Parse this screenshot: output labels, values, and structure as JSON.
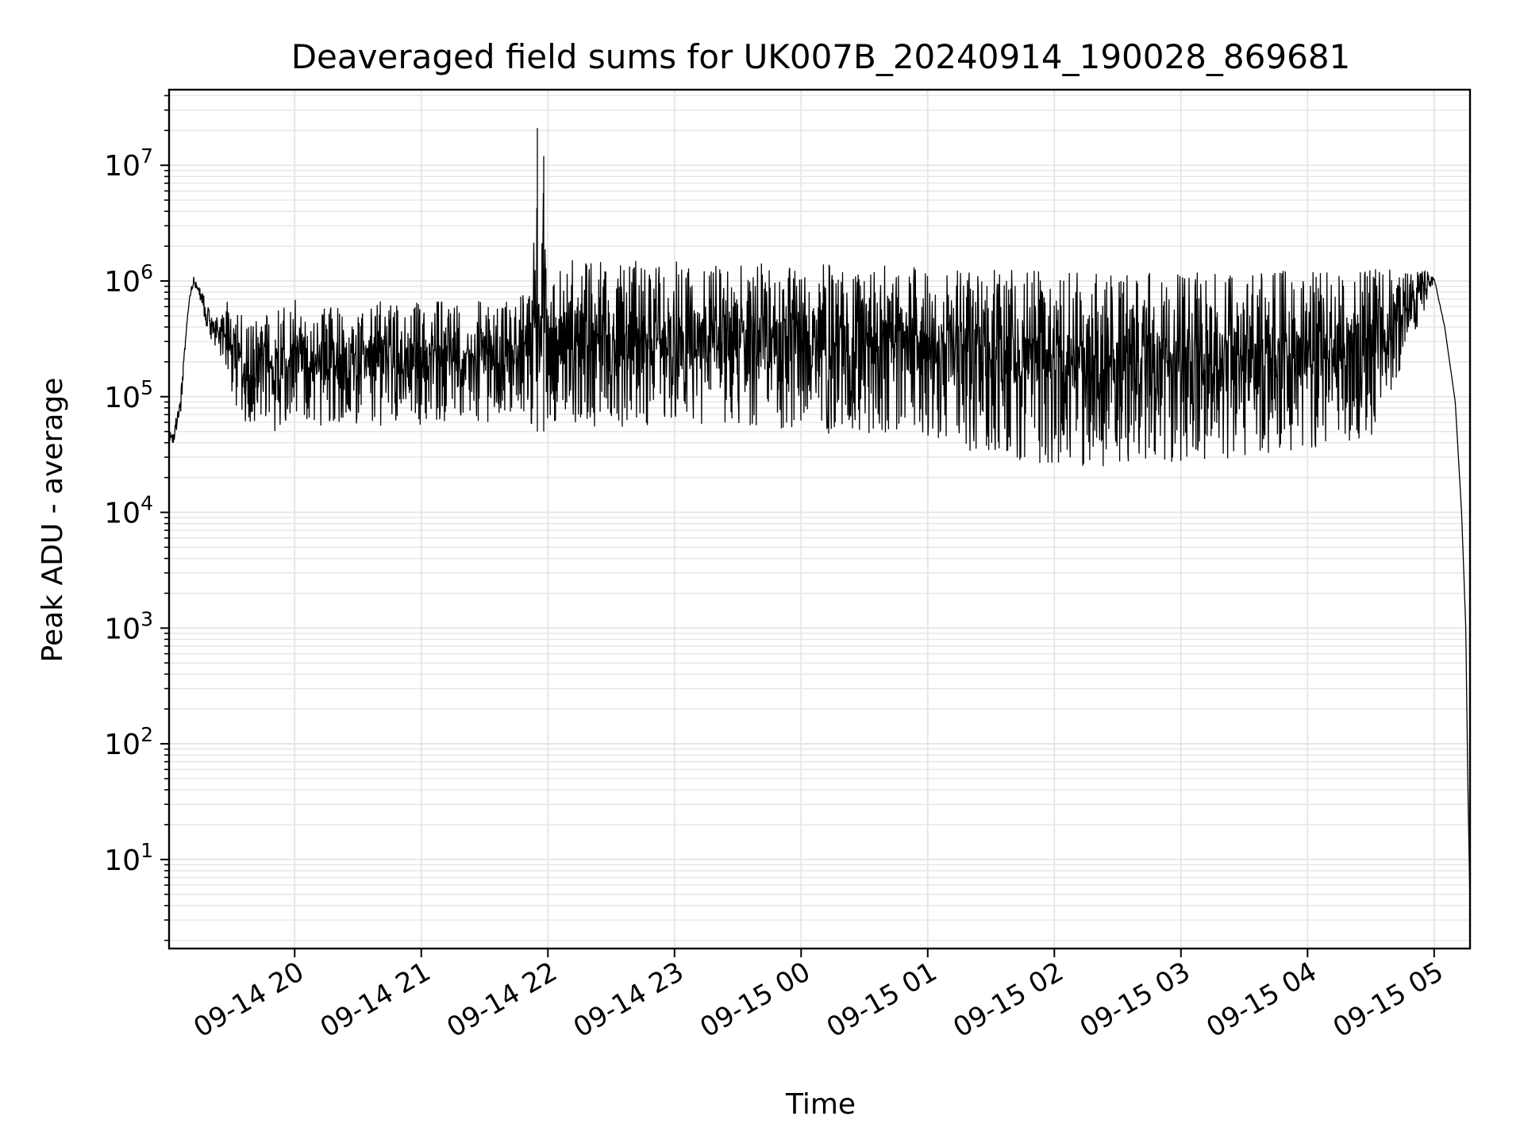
{
  "chart_data": {
    "type": "line",
    "title": "Deaveraged field sums for UK007B_20240914_190028_869681",
    "xlabel": "Time",
    "ylabel": "Peak ADU - average",
    "y_scale": "log",
    "grid": true,
    "legend": "none",
    "line_color": "#000000",
    "grid_color": "#e5e5e5",
    "xlim": [
      "2024-09-14 19:00:28",
      "2024-09-15 05:17"
    ],
    "ylim": [
      1.7,
      45000000
    ],
    "x_ticks": [
      {
        "value": "2024-09-14 20:00",
        "label": "09-14 20"
      },
      {
        "value": "2024-09-14 21:00",
        "label": "09-14 21"
      },
      {
        "value": "2024-09-14 22:00",
        "label": "09-14 22"
      },
      {
        "value": "2024-09-14 23:00",
        "label": "09-14 23"
      },
      {
        "value": "2024-09-15 00:00",
        "label": "09-15 00"
      },
      {
        "value": "2024-09-15 01:00",
        "label": "09-15 01"
      },
      {
        "value": "2024-09-15 02:00",
        "label": "09-15 02"
      },
      {
        "value": "2024-09-15 03:00",
        "label": "09-15 03"
      },
      {
        "value": "2024-09-15 04:00",
        "label": "09-15 04"
      },
      {
        "value": "2024-09-15 05:00",
        "label": "09-15 05"
      }
    ],
    "y_ticks": [
      {
        "value": 10,
        "base": "10",
        "exp": "1"
      },
      {
        "value": 100,
        "base": "10",
        "exp": "2"
      },
      {
        "value": 1000,
        "base": "10",
        "exp": "3"
      },
      {
        "value": 10000,
        "base": "10",
        "exp": "4"
      },
      {
        "value": 100000,
        "base": "10",
        "exp": "5"
      },
      {
        "value": 1000000,
        "base": "10",
        "exp": "6"
      },
      {
        "value": 10000000,
        "base": "10",
        "exp": "7"
      }
    ],
    "series": [
      {
        "x": [
          "2024-09-14 19:00:28",
          "2024-09-14 19:03",
          "2024-09-14 19:06",
          "2024-09-14 19:08",
          "2024-09-14 19:10",
          "2024-09-14 19:12",
          "2024-09-14 19:15",
          "2024-09-14 19:18",
          "2024-09-14 19:20",
          "2024-09-14 19:24",
          "2024-09-14 19:28",
          "2024-09-14 19:32",
          "2024-09-14 19:36",
          "2024-09-14 19:40",
          "2024-09-14 19:45",
          "2024-09-14 19:50",
          "2024-09-14 19:55",
          "2024-09-14 20:00",
          "2024-09-14 20:10",
          "2024-09-14 20:20",
          "2024-09-14 20:30",
          "2024-09-14 20:40",
          "2024-09-14 20:50",
          "2024-09-14 21:00",
          "2024-09-14 21:10",
          "2024-09-14 21:20",
          "2024-09-14 21:30",
          "2024-09-14 21:40",
          "2024-09-14 21:52",
          "2024-09-14 21:55",
          "2024-09-14 21:56",
          "2024-09-14 21:58",
          "2024-09-14 22:00",
          "2024-09-14 22:10",
          "2024-09-14 22:15",
          "2024-09-14 22:30",
          "2024-09-14 23:00",
          "2024-09-14 23:30",
          "2024-09-15 00:00",
          "2024-09-15 00:30",
          "2024-09-15 01:00",
          "2024-09-15 01:30",
          "2024-09-15 02:00",
          "2024-09-15 02:30",
          "2024-09-15 03:00",
          "2024-09-15 03:30",
          "2024-09-15 04:00",
          "2024-09-15 04:30",
          "2024-09-15 04:55",
          "2024-09-15 05:00",
          "2024-09-15 05:05",
          "2024-09-15 05:10",
          "2024-09-15 05:13",
          "2024-09-15 05:15",
          "2024-09-15 05:16",
          "2024-09-15 05:17"
        ],
        "upper": [
          50000,
          55000,
          130000,
          300000,
          700000,
          1100000,
          900000,
          700000,
          600000,
          500000,
          700000,
          600000,
          500000,
          400000,
          700000,
          500000,
          800000,
          700000,
          600000,
          600000,
          500000,
          700000,
          600000,
          700000,
          700000,
          700000,
          800000,
          700000,
          900000,
          21000000,
          300000,
          12000000,
          900000,
          1600000,
          1500000,
          1500000,
          1500000,
          1400000,
          1500000,
          1400000,
          1300000,
          1300000,
          1200000,
          1200000,
          1200000,
          1200000,
          1300000,
          1300000,
          1400000,
          1100000,
          400000,
          90000,
          10000,
          1000,
          40,
          4
        ],
        "lower": [
          35000,
          40000,
          60000,
          250000,
          650000,
          900000,
          700000,
          400000,
          300000,
          250000,
          150000,
          80000,
          60000,
          55000,
          55000,
          50000,
          50000,
          55000,
          55000,
          60000,
          55000,
          55000,
          60000,
          55000,
          60000,
          60000,
          60000,
          60000,
          55000,
          50000,
          60000,
          50000,
          60000,
          60000,
          55000,
          55000,
          55000,
          55000,
          50000,
          45000,
          40000,
          30000,
          25000,
          25000,
          25000,
          30000,
          35000,
          45000,
          500000,
          1000000,
          400000,
          90000,
          10000,
          1000,
          40,
          4
        ]
      }
    ]
  }
}
